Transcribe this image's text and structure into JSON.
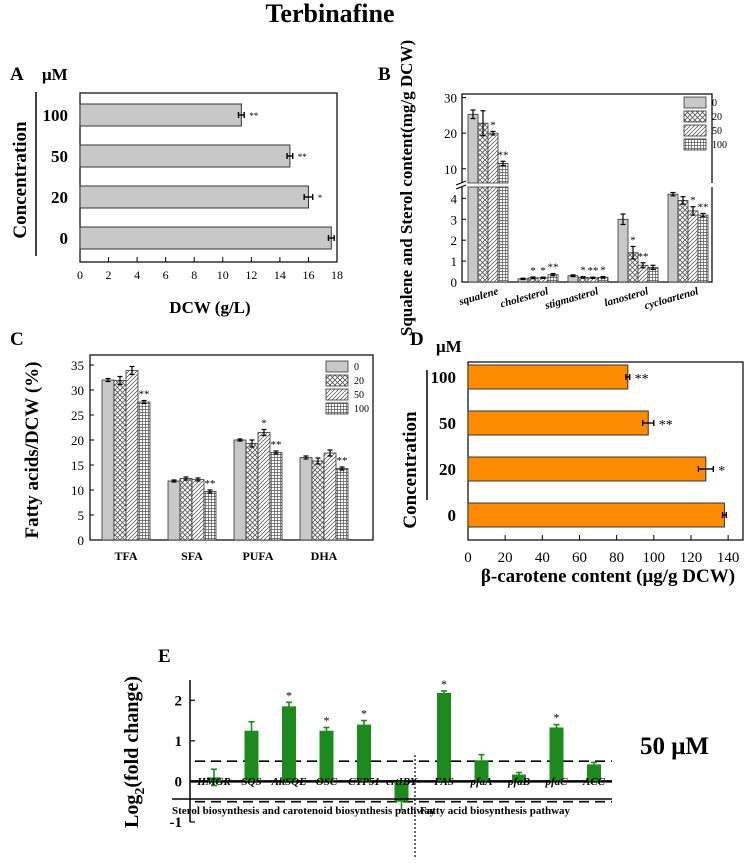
{
  "figure_title": "Terbinafine",
  "chart_data": [
    {
      "panel": "A",
      "type": "bar",
      "orientation": "horizontal",
      "unit_label": "μM",
      "ylabel": "Concentration",
      "xlabel": "DCW (g/L)",
      "categories": [
        "100",
        "50",
        "20",
        "0"
      ],
      "values": [
        11.3,
        14.7,
        16.0,
        17.6
      ],
      "errors": [
        0.2,
        0.2,
        0.3,
        0.2
      ],
      "significance": [
        "**",
        "**",
        "*",
        ""
      ],
      "xlim": [
        0,
        18
      ],
      "xticks": [
        "0",
        "2",
        "4",
        "6",
        "8",
        "10",
        "12",
        "14",
        "16",
        "18"
      ],
      "bar_color": "#c8c8c8"
    },
    {
      "panel": "B",
      "type": "bar",
      "orientation": "vertical",
      "broken_axis": true,
      "ylabel": "Squalene and Sterol content(mg/g DCW)",
      "categories": [
        "squalene",
        "cholesterol",
        "stigmasterol",
        "lanosterol",
        "cycloartenol"
      ],
      "legend": [
        "0",
        "20",
        "50",
        "100"
      ],
      "series": [
        {
          "name": "0",
          "values": [
            25.3,
            0.15,
            0.3,
            3.0,
            4.2
          ],
          "errors": [
            1.2,
            0.03,
            0.04,
            0.25,
            0.08
          ]
        },
        {
          "name": "20",
          "values": [
            22.8,
            0.2,
            0.22,
            1.4,
            3.9
          ],
          "errors": [
            3.5,
            0.04,
            0.04,
            0.3,
            0.18
          ]
        },
        {
          "name": "50",
          "values": [
            20.0,
            0.2,
            0.2,
            0.8,
            3.4
          ],
          "errors": [
            0.5,
            0.03,
            0.03,
            0.12,
            0.2
          ]
        },
        {
          "name": "100",
          "values": [
            11.5,
            0.35,
            0.22,
            0.7,
            3.2
          ],
          "errors": [
            0.6,
            0.05,
            0.04,
            0.1,
            0.08
          ]
        }
      ],
      "significance": [
        [
          "",
          "",
          "*",
          "**"
        ],
        [
          "",
          "*",
          "*",
          "**"
        ],
        [
          "",
          "*",
          "**",
          "*"
        ],
        [
          "",
          "*",
          "**",
          ""
        ],
        [
          "",
          "",
          "*",
          "**"
        ]
      ],
      "lower_yticks": [
        "0",
        "1",
        "2",
        "3",
        "4"
      ],
      "upper_yticks": [
        "10",
        "20",
        "30"
      ],
      "lower_ylim": [
        0,
        4.4
      ],
      "upper_ylim": [
        6,
        31
      ]
    },
    {
      "panel": "C",
      "type": "bar",
      "orientation": "vertical",
      "ylabel": "Fatty acids/DCW (%)",
      "categories": [
        "TFA",
        "SFA",
        "PUFA",
        "DHA"
      ],
      "legend": [
        "0",
        "20",
        "50",
        "100"
      ],
      "series": [
        {
          "name": "0",
          "values": [
            32.0,
            11.8,
            20.0,
            16.5
          ],
          "errors": [
            0.3,
            0.2,
            0.2,
            0.3
          ]
        },
        {
          "name": "20",
          "values": [
            31.9,
            12.3,
            19.3,
            15.8
          ],
          "errors": [
            0.8,
            0.3,
            0.7,
            0.6
          ]
        },
        {
          "name": "50",
          "values": [
            33.9,
            12.1,
            21.5,
            17.4
          ],
          "errors": [
            0.8,
            0.3,
            0.6,
            0.6
          ]
        },
        {
          "name": "100",
          "values": [
            27.6,
            9.7,
            17.5,
            14.3
          ],
          "errors": [
            0.3,
            0.3,
            0.3,
            0.3
          ]
        }
      ],
      "significance": [
        [
          "",
          "",
          "",
          "**"
        ],
        [
          "",
          "",
          "",
          "**"
        ],
        [
          "",
          "",
          "*",
          "**"
        ],
        [
          "",
          "",
          "",
          "**"
        ]
      ],
      "yticks": [
        "0",
        "5",
        "10",
        "15",
        "20",
        "25",
        "30",
        "35"
      ],
      "ylim": [
        0,
        37
      ]
    },
    {
      "panel": "D",
      "type": "bar",
      "orientation": "horizontal",
      "unit_label": "μM",
      "ylabel": "Concentration",
      "xlabel": "β-carotene content (μg/g DCW)",
      "categories": [
        "100",
        "50",
        "20",
        "0"
      ],
      "values": [
        86,
        97,
        128,
        138
      ],
      "errors": [
        1,
        3,
        4,
        1
      ],
      "significance": [
        "**",
        "**",
        "*",
        ""
      ],
      "xlim": [
        0,
        148
      ],
      "xticks": [
        "0",
        "20",
        "40",
        "60",
        "80",
        "100",
        "120",
        "140"
      ],
      "bar_color": "#ff8c00"
    },
    {
      "panel": "E",
      "type": "bar",
      "orientation": "vertical",
      "ylabel": "Log2(fold change)",
      "ylabel_base": "Log",
      "ylabel_sub": "2",
      "ylabel_rest": "(fold change)",
      "categories": [
        "HMGR",
        "SQS",
        "AltSQE",
        "OSC",
        "CYP51",
        "crtIBY",
        "FAS",
        "pfaA",
        "pfaB",
        "pfaC",
        "ACC"
      ],
      "values": [
        0.1,
        1.25,
        1.85,
        1.25,
        1.4,
        -0.5,
        2.18,
        0.52,
        0.17,
        1.33,
        0.42
      ],
      "errors": [
        0.2,
        0.22,
        0.1,
        0.08,
        0.1,
        0.2,
        0.05,
        0.14,
        0.05,
        0.07,
        0.05
      ],
      "significance": [
        "",
        "",
        "*",
        "*",
        "*",
        "",
        "*",
        "",
        "",
        "*",
        ""
      ],
      "ylim": [
        -1,
        2.5
      ],
      "yticks": [
        "-1",
        "0",
        "1",
        "2"
      ],
      "threshold_lines": [
        0.5,
        -0.5
      ],
      "concentration_label": "50 μM",
      "groups": [
        "Sterol biosynthesis and carotenoid biosynthesis pathway",
        "Fatty acid biosynthesis pathway"
      ],
      "bar_color": "#1d8a1d"
    }
  ]
}
